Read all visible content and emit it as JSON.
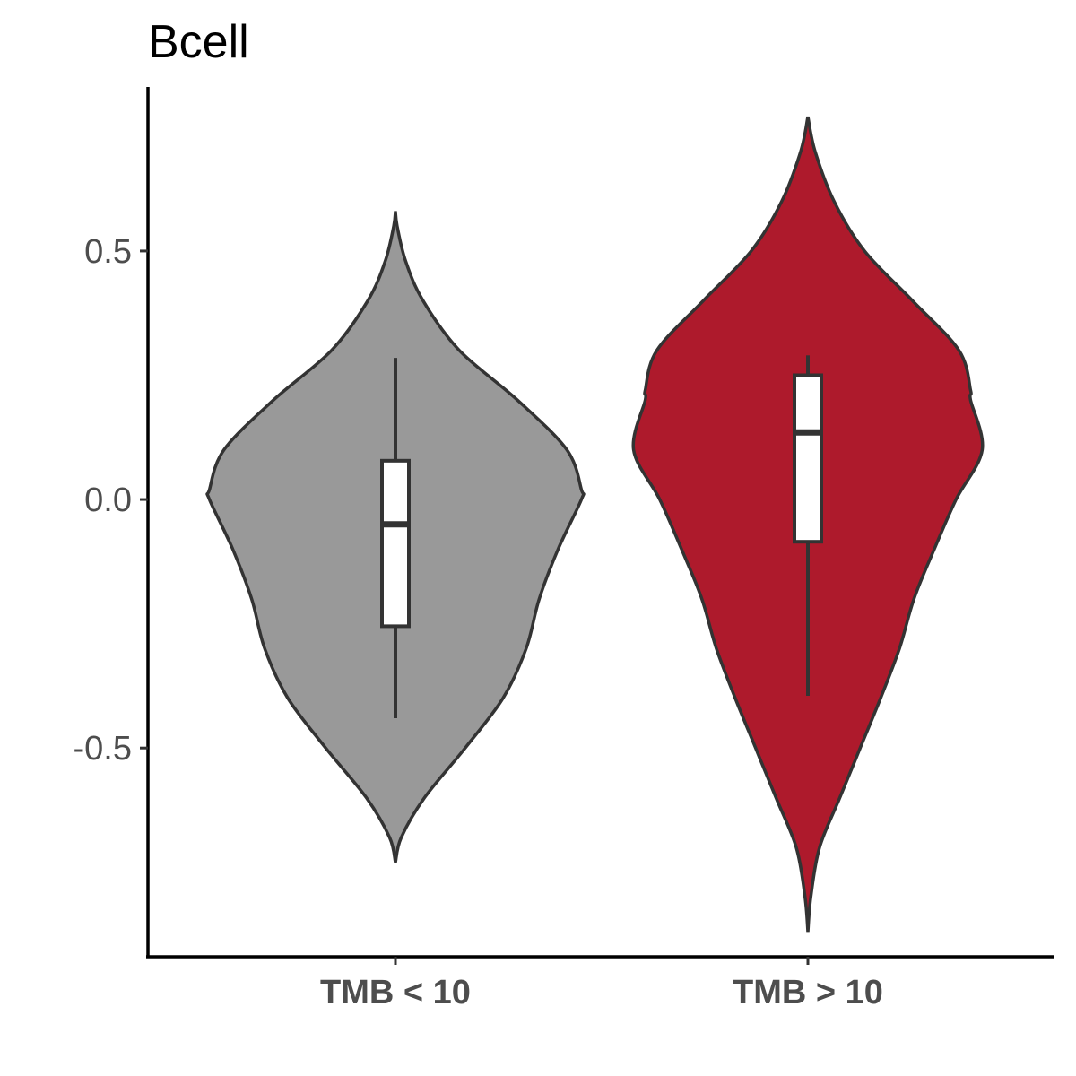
{
  "chart_data": {
    "type": "violin",
    "title": "Bcell",
    "xlabel": "",
    "ylabel": "",
    "ylim": [
      -0.92,
      0.83
    ],
    "yticks": [
      {
        "value": 0.5,
        "label": "0.5"
      },
      {
        "value": 0.0,
        "label": "0.0"
      },
      {
        "value": -0.5,
        "label": "-0.5"
      }
    ],
    "categories": [
      "TMB < 10",
      "TMB > 10"
    ],
    "grid": false,
    "legend": "none",
    "groups": [
      {
        "label": "TMB < 10",
        "color": "#999999",
        "box": {
          "whisker_low": -0.44,
          "q1": -0.255,
          "median": -0.05,
          "q3": 0.078,
          "whisker_high": 0.285
        },
        "violin_range": [
          -0.73,
          0.58
        ],
        "density": [
          {
            "y": -0.73,
            "w": 0.0
          },
          {
            "y": -0.68,
            "w": 0.04
          },
          {
            "y": -0.6,
            "w": 0.2
          },
          {
            "y": -0.5,
            "w": 0.48
          },
          {
            "y": -0.4,
            "w": 0.74
          },
          {
            "y": -0.3,
            "w": 0.9
          },
          {
            "y": -0.2,
            "w": 0.99
          },
          {
            "y": -0.1,
            "w": 1.12
          },
          {
            "y": 0.0,
            "w": 1.28
          },
          {
            "y": 0.02,
            "w": 1.28
          },
          {
            "y": 0.1,
            "w": 1.18
          },
          {
            "y": 0.2,
            "w": 0.84
          },
          {
            "y": 0.3,
            "w": 0.44
          },
          {
            "y": 0.4,
            "w": 0.19
          },
          {
            "y": 0.48,
            "w": 0.07
          },
          {
            "y": 0.55,
            "w": 0.012
          },
          {
            "y": 0.58,
            "w": 0.0
          }
        ]
      },
      {
        "label": "TMB > 10",
        "color": "#AE1A2C",
        "box": {
          "whisker_low": -0.395,
          "q1": -0.085,
          "median": 0.135,
          "q3": 0.25,
          "whisker_high": 0.29
        },
        "violin_range": [
          -0.87,
          0.77
        ],
        "density": [
          {
            "y": -0.87,
            "w": 0.0
          },
          {
            "y": -0.8,
            "w": 0.02
          },
          {
            "y": -0.7,
            "w": 0.08
          },
          {
            "y": -0.6,
            "w": 0.22
          },
          {
            "y": -0.5,
            "w": 0.36
          },
          {
            "y": -0.4,
            "w": 0.5
          },
          {
            "y": -0.3,
            "w": 0.63
          },
          {
            "y": -0.2,
            "w": 0.73
          },
          {
            "y": -0.1,
            "w": 0.87
          },
          {
            "y": 0.0,
            "w": 1.02
          },
          {
            "y": 0.1,
            "w": 1.2
          },
          {
            "y": 0.2,
            "w": 1.12
          },
          {
            "y": 0.22,
            "w": 1.12
          },
          {
            "y": 0.3,
            "w": 1.04
          },
          {
            "y": 0.4,
            "w": 0.72
          },
          {
            "y": 0.5,
            "w": 0.39
          },
          {
            "y": 0.6,
            "w": 0.18
          },
          {
            "y": 0.7,
            "w": 0.05
          },
          {
            "y": 0.77,
            "w": 0.0
          }
        ]
      }
    ]
  }
}
